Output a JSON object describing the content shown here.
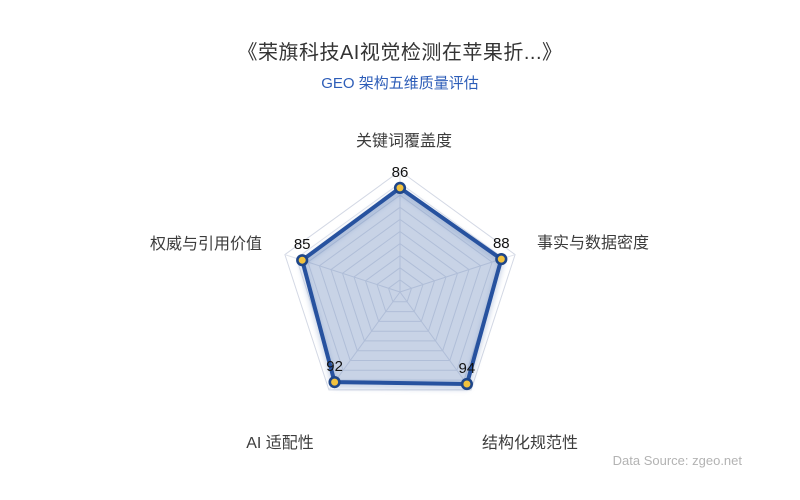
{
  "page": {
    "title": "《荣旗科技AI视觉检测在苹果折...》",
    "subtitle": "GEO 架构五维质量评估",
    "data_source": "Data Source: zgeo.net"
  },
  "colors": {
    "title": "#333333",
    "subtitle": "#2d5db8",
    "polygon_stroke": "#27529f",
    "polygon_fill": "rgba(42,85,160,0.20)",
    "point_fill": "#f2c23e",
    "point_stroke": "#1e4689",
    "grid_line": "#dfe3ec",
    "grid_outer": "#d3d8e4",
    "axis_label": "#3c3c3c",
    "value_label": "#111111",
    "source": "#b3b3b3"
  },
  "chart_data": {
    "type": "radar",
    "title": "GEO 架构五维质量评估",
    "min": 0,
    "max": 100,
    "rings": 10,
    "grid": true,
    "legend_position": "none",
    "indicators": [
      {
        "name": "关键词覆盖度",
        "value": 86
      },
      {
        "name": "事实与数据密度",
        "value": 88
      },
      {
        "name": "结构化规范性",
        "value": 94
      },
      {
        "name": "AI 适配性",
        "value": 92
      },
      {
        "name": "权威与引用价值",
        "value": 85
      }
    ],
    "series": [
      {
        "name": "GEO 架构五维质量评估",
        "values": [
          86,
          88,
          94,
          92,
          85
        ]
      }
    ]
  }
}
